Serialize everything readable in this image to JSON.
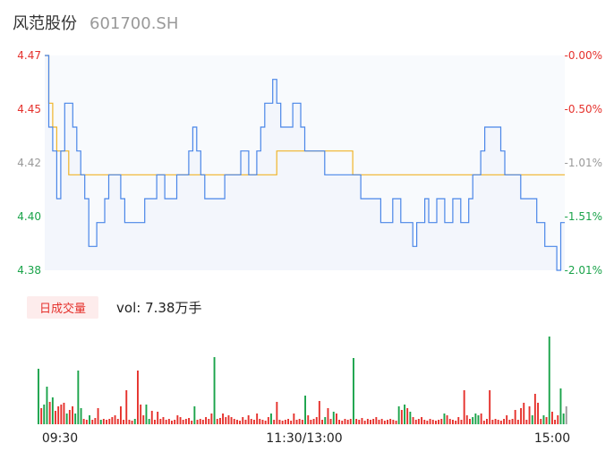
{
  "header": {
    "name": "风范股份",
    "code": "601700.SH"
  },
  "volume_panel": {
    "tab_label": "日成交量",
    "vol_prefix": "vol:",
    "vol_value": "7.38万手"
  },
  "colors": {
    "price_line": "#4a86e8",
    "avg_line": "#f0b429",
    "up": "#e5312c",
    "down": "#1aa34a",
    "flat": "#999999"
  },
  "chart_data": [
    {
      "type": "line",
      "title": "",
      "x_ticks": [
        "09:30",
        "11:30/13:00",
        "15:00"
      ],
      "y_left_ticks": [
        "4.47",
        "4.45",
        "4.42",
        "4.40",
        "4.38"
      ],
      "y_right_ticks": [
        "-0.00%",
        "-0.50%",
        "-1.01%",
        "-1.51%",
        "-2.01%"
      ],
      "ylim": [
        4.38,
        4.47
      ],
      "grid": false,
      "series": [
        {
          "values": [
            4.47,
            4.44,
            4.43,
            4.41,
            4.43,
            4.45,
            4.45,
            4.44,
            4.43,
            4.42,
            4.41,
            4.39,
            4.39,
            4.4,
            4.4,
            4.41,
            4.42,
            4.42,
            4.42,
            4.41,
            4.4,
            4.4,
            4.4,
            4.4,
            4.4,
            4.41,
            4.41,
            4.41,
            4.42,
            4.42,
            4.41,
            4.41,
            4.41,
            4.42,
            4.42,
            4.42,
            4.43,
            4.44,
            4.43,
            4.42,
            4.41,
            4.41,
            4.41,
            4.41,
            4.41,
            4.42,
            4.42,
            4.42,
            4.42,
            4.43,
            4.43,
            4.42,
            4.42,
            4.43,
            4.44,
            4.45,
            4.45,
            4.46,
            4.45,
            4.44,
            4.44,
            4.44,
            4.45,
            4.45,
            4.44,
            4.43,
            4.43,
            4.43,
            4.43,
            4.43,
            4.42,
            4.42,
            4.42,
            4.42,
            4.42,
            4.42,
            4.42,
            4.42,
            4.42,
            4.41,
            4.41,
            4.41,
            4.41,
            4.41,
            4.4,
            4.4,
            4.4,
            4.41,
            4.41,
            4.4,
            4.4,
            4.4,
            4.39,
            4.4,
            4.4,
            4.41,
            4.4,
            4.4,
            4.41,
            4.41,
            4.4,
            4.4,
            4.41,
            4.41,
            4.4,
            4.4,
            4.41,
            4.42,
            4.42,
            4.43,
            4.44,
            4.44,
            4.44,
            4.44,
            4.43,
            4.42,
            4.42,
            4.42,
            4.42,
            4.41,
            4.41,
            4.41,
            4.41,
            4.4,
            4.4,
            4.39,
            4.39,
            4.39,
            4.38,
            4.4,
            4.4
          ]
        },
        {
          "values": [
            4.47,
            4.45,
            4.44,
            4.43,
            4.43,
            4.43,
            4.42,
            4.42,
            4.42,
            4.42,
            4.42,
            4.42,
            4.42,
            4.42,
            4.42,
            4.42,
            4.42,
            4.42,
            4.42,
            4.42,
            4.42,
            4.42,
            4.42,
            4.42,
            4.42,
            4.42,
            4.42,
            4.42,
            4.42,
            4.42,
            4.42,
            4.42,
            4.42,
            4.42,
            4.42,
            4.42,
            4.42,
            4.42,
            4.42,
            4.42,
            4.42,
            4.42,
            4.42,
            4.42,
            4.42,
            4.42,
            4.42,
            4.42,
            4.42,
            4.42,
            4.42,
            4.42,
            4.42,
            4.42,
            4.42,
            4.42,
            4.42,
            4.42,
            4.43,
            4.43,
            4.43,
            4.43,
            4.43,
            4.43,
            4.43,
            4.43,
            4.43,
            4.43,
            4.43,
            4.43,
            4.43,
            4.43,
            4.43,
            4.43,
            4.43,
            4.43,
            4.43,
            4.42,
            4.42,
            4.42,
            4.42,
            4.42,
            4.42,
            4.42,
            4.42,
            4.42,
            4.42,
            4.42,
            4.42,
            4.42,
            4.42,
            4.42,
            4.42,
            4.42,
            4.42,
            4.42,
            4.42,
            4.42,
            4.42,
            4.42,
            4.42,
            4.42,
            4.42,
            4.42,
            4.42,
            4.42,
            4.42,
            4.42,
            4.42,
            4.42,
            4.42,
            4.42,
            4.42,
            4.42,
            4.42,
            4.42,
            4.42,
            4.42,
            4.42,
            4.42,
            4.42,
            4.42,
            4.42,
            4.42,
            4.42,
            4.42,
            4.42,
            4.42,
            4.42,
            4.42,
            4.42
          ]
        }
      ]
    },
    {
      "type": "bar",
      "title": "",
      "x_ticks": [
        "09:30",
        "11:30/13:00",
        "15:00"
      ],
      "ylim": [
        0,
        1.0
      ],
      "bars": [
        {
          "v": 0.62,
          "d": "down"
        },
        {
          "v": 0.18,
          "d": "up"
        },
        {
          "v": 0.22,
          "d": "down"
        },
        {
          "v": 0.42,
          "d": "down"
        },
        {
          "v": 0.25,
          "d": "up"
        },
        {
          "v": 0.3,
          "d": "down"
        },
        {
          "v": 0.15,
          "d": "up"
        },
        {
          "v": 0.2,
          "d": "up"
        },
        {
          "v": 0.22,
          "d": "up"
        },
        {
          "v": 0.24,
          "d": "up"
        },
        {
          "v": 0.12,
          "d": "down"
        },
        {
          "v": 0.16,
          "d": "up"
        },
        {
          "v": 0.2,
          "d": "up"
        },
        {
          "v": 0.12,
          "d": "down"
        },
        {
          "v": 0.6,
          "d": "down"
        },
        {
          "v": 0.18,
          "d": "down"
        },
        {
          "v": 0.06,
          "d": "up"
        },
        {
          "v": 0.05,
          "d": "up"
        },
        {
          "v": 0.1,
          "d": "down"
        },
        {
          "v": 0.05,
          "d": "up"
        },
        {
          "v": 0.07,
          "d": "up"
        },
        {
          "v": 0.18,
          "d": "up"
        },
        {
          "v": 0.05,
          "d": "down"
        },
        {
          "v": 0.06,
          "d": "up"
        },
        {
          "v": 0.05,
          "d": "up"
        },
        {
          "v": 0.06,
          "d": "up"
        },
        {
          "v": 0.08,
          "d": "up"
        },
        {
          "v": 0.1,
          "d": "up"
        },
        {
          "v": 0.06,
          "d": "up"
        },
        {
          "v": 0.2,
          "d": "up"
        },
        {
          "v": 0.05,
          "d": "up"
        },
        {
          "v": 0.38,
          "d": "up"
        },
        {
          "v": 0.05,
          "d": "up"
        },
        {
          "v": 0.04,
          "d": "up"
        },
        {
          "v": 0.06,
          "d": "down"
        },
        {
          "v": 0.6,
          "d": "up"
        },
        {
          "v": 0.22,
          "d": "up"
        },
        {
          "v": 0.1,
          "d": "up"
        },
        {
          "v": 0.22,
          "d": "down"
        },
        {
          "v": 0.06,
          "d": "down"
        },
        {
          "v": 0.15,
          "d": "up"
        },
        {
          "v": 0.05,
          "d": "up"
        },
        {
          "v": 0.14,
          "d": "up"
        },
        {
          "v": 0.06,
          "d": "up"
        },
        {
          "v": 0.08,
          "d": "up"
        },
        {
          "v": 0.05,
          "d": "up"
        },
        {
          "v": 0.06,
          "d": "up"
        },
        {
          "v": 0.04,
          "d": "up"
        },
        {
          "v": 0.05,
          "d": "up"
        },
        {
          "v": 0.1,
          "d": "up"
        },
        {
          "v": 0.08,
          "d": "up"
        },
        {
          "v": 0.05,
          "d": "up"
        },
        {
          "v": 0.06,
          "d": "up"
        },
        {
          "v": 0.07,
          "d": "up"
        },
        {
          "v": 0.04,
          "d": "up"
        },
        {
          "v": 0.2,
          "d": "down"
        },
        {
          "v": 0.05,
          "d": "up"
        },
        {
          "v": 0.06,
          "d": "up"
        },
        {
          "v": 0.05,
          "d": "up"
        },
        {
          "v": 0.08,
          "d": "up"
        },
        {
          "v": 0.06,
          "d": "up"
        },
        {
          "v": 0.12,
          "d": "up"
        },
        {
          "v": 0.75,
          "d": "down"
        },
        {
          "v": 0.06,
          "d": "up"
        },
        {
          "v": 0.07,
          "d": "up"
        },
        {
          "v": 0.12,
          "d": "up"
        },
        {
          "v": 0.08,
          "d": "up"
        },
        {
          "v": 0.1,
          "d": "up"
        },
        {
          "v": 0.08,
          "d": "up"
        },
        {
          "v": 0.06,
          "d": "up"
        },
        {
          "v": 0.05,
          "d": "up"
        },
        {
          "v": 0.04,
          "d": "up"
        },
        {
          "v": 0.08,
          "d": "up"
        },
        {
          "v": 0.05,
          "d": "up"
        },
        {
          "v": 0.1,
          "d": "up"
        },
        {
          "v": 0.06,
          "d": "up"
        },
        {
          "v": 0.05,
          "d": "up"
        },
        {
          "v": 0.12,
          "d": "up"
        },
        {
          "v": 0.06,
          "d": "up"
        },
        {
          "v": 0.05,
          "d": "up"
        },
        {
          "v": 0.04,
          "d": "up"
        },
        {
          "v": 0.08,
          "d": "up"
        },
        {
          "v": 0.12,
          "d": "down"
        },
        {
          "v": 0.05,
          "d": "up"
        },
        {
          "v": 0.25,
          "d": "up"
        },
        {
          "v": 0.05,
          "d": "up"
        },
        {
          "v": 0.04,
          "d": "up"
        },
        {
          "v": 0.05,
          "d": "up"
        },
        {
          "v": 0.06,
          "d": "up"
        },
        {
          "v": 0.04,
          "d": "up"
        },
        {
          "v": 0.12,
          "d": "up"
        },
        {
          "v": 0.05,
          "d": "up"
        },
        {
          "v": 0.06,
          "d": "up"
        },
        {
          "v": 0.05,
          "d": "up"
        },
        {
          "v": 0.32,
          "d": "down"
        },
        {
          "v": 0.1,
          "d": "up"
        },
        {
          "v": 0.05,
          "d": "up"
        },
        {
          "v": 0.06,
          "d": "up"
        },
        {
          "v": 0.08,
          "d": "up"
        },
        {
          "v": 0.26,
          "d": "up"
        },
        {
          "v": 0.05,
          "d": "up"
        },
        {
          "v": 0.08,
          "d": "down"
        },
        {
          "v": 0.18,
          "d": "up"
        },
        {
          "v": 0.06,
          "d": "up"
        },
        {
          "v": 0.14,
          "d": "down"
        },
        {
          "v": 0.12,
          "d": "up"
        },
        {
          "v": 0.05,
          "d": "up"
        },
        {
          "v": 0.04,
          "d": "up"
        },
        {
          "v": 0.06,
          "d": "up"
        },
        {
          "v": 0.05,
          "d": "up"
        },
        {
          "v": 0.06,
          "d": "up"
        },
        {
          "v": 0.74,
          "d": "down"
        },
        {
          "v": 0.06,
          "d": "up"
        },
        {
          "v": 0.05,
          "d": "up"
        },
        {
          "v": 0.07,
          "d": "up"
        },
        {
          "v": 0.04,
          "d": "up"
        },
        {
          "v": 0.06,
          "d": "up"
        },
        {
          "v": 0.05,
          "d": "up"
        },
        {
          "v": 0.06,
          "d": "up"
        },
        {
          "v": 0.08,
          "d": "up"
        },
        {
          "v": 0.05,
          "d": "up"
        },
        {
          "v": 0.06,
          "d": "up"
        },
        {
          "v": 0.04,
          "d": "up"
        },
        {
          "v": 0.05,
          "d": "up"
        },
        {
          "v": 0.06,
          "d": "up"
        },
        {
          "v": 0.05,
          "d": "up"
        },
        {
          "v": 0.04,
          "d": "up"
        },
        {
          "v": 0.2,
          "d": "down"
        },
        {
          "v": 0.16,
          "d": "up"
        },
        {
          "v": 0.22,
          "d": "down"
        },
        {
          "v": 0.18,
          "d": "up"
        },
        {
          "v": 0.14,
          "d": "down"
        },
        {
          "v": 0.08,
          "d": "up"
        },
        {
          "v": 0.05,
          "d": "up"
        },
        {
          "v": 0.06,
          "d": "up"
        },
        {
          "v": 0.08,
          "d": "up"
        },
        {
          "v": 0.05,
          "d": "up"
        },
        {
          "v": 0.04,
          "d": "up"
        },
        {
          "v": 0.06,
          "d": "up"
        },
        {
          "v": 0.05,
          "d": "up"
        },
        {
          "v": 0.04,
          "d": "up"
        },
        {
          "v": 0.05,
          "d": "up"
        },
        {
          "v": 0.06,
          "d": "up"
        },
        {
          "v": 0.12,
          "d": "down"
        },
        {
          "v": 0.1,
          "d": "up"
        },
        {
          "v": 0.06,
          "d": "up"
        },
        {
          "v": 0.05,
          "d": "up"
        },
        {
          "v": 0.04,
          "d": "up"
        },
        {
          "v": 0.08,
          "d": "up"
        },
        {
          "v": 0.05,
          "d": "up"
        },
        {
          "v": 0.38,
          "d": "up"
        },
        {
          "v": 0.1,
          "d": "up"
        },
        {
          "v": 0.06,
          "d": "up"
        },
        {
          "v": 0.08,
          "d": "down"
        },
        {
          "v": 0.12,
          "d": "down"
        },
        {
          "v": 0.1,
          "d": "down"
        },
        {
          "v": 0.12,
          "d": "up"
        },
        {
          "v": 0.04,
          "d": "up"
        },
        {
          "v": 0.06,
          "d": "up"
        },
        {
          "v": 0.38,
          "d": "up"
        },
        {
          "v": 0.05,
          "d": "up"
        },
        {
          "v": 0.06,
          "d": "up"
        },
        {
          "v": 0.05,
          "d": "up"
        },
        {
          "v": 0.04,
          "d": "up"
        },
        {
          "v": 0.06,
          "d": "up"
        },
        {
          "v": 0.1,
          "d": "up"
        },
        {
          "v": 0.05,
          "d": "up"
        },
        {
          "v": 0.06,
          "d": "up"
        },
        {
          "v": 0.16,
          "d": "up"
        },
        {
          "v": 0.05,
          "d": "up"
        },
        {
          "v": 0.18,
          "d": "up"
        },
        {
          "v": 0.24,
          "d": "up"
        },
        {
          "v": 0.05,
          "d": "up"
        },
        {
          "v": 0.2,
          "d": "up"
        },
        {
          "v": 0.1,
          "d": "down"
        },
        {
          "v": 0.34,
          "d": "up"
        },
        {
          "v": 0.24,
          "d": "up"
        },
        {
          "v": 0.06,
          "d": "up"
        },
        {
          "v": 0.1,
          "d": "down"
        },
        {
          "v": 0.08,
          "d": "up"
        },
        {
          "v": 0.98,
          "d": "down"
        },
        {
          "v": 0.14,
          "d": "up"
        },
        {
          "v": 0.05,
          "d": "up"
        },
        {
          "v": 0.1,
          "d": "up"
        },
        {
          "v": 0.4,
          "d": "down"
        },
        {
          "v": 0.12,
          "d": "down"
        },
        {
          "v": 0.2,
          "d": "flat"
        }
      ]
    }
  ]
}
